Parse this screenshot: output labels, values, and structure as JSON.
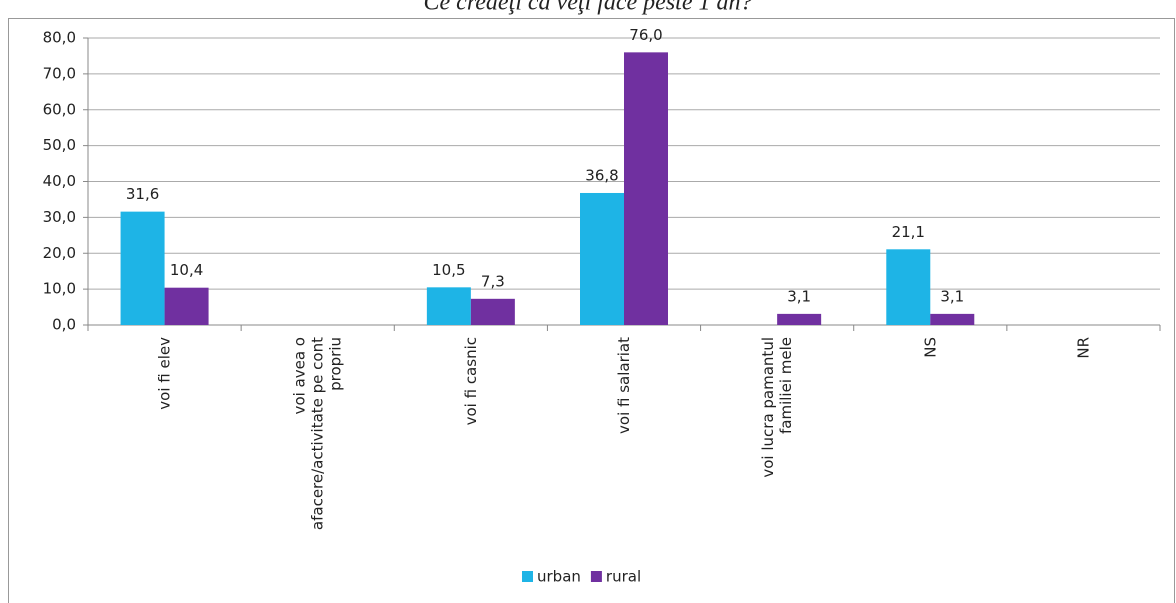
{
  "chart_data": {
    "type": "bar",
    "title": "Ce credeţi ca veţi face peste 1 an?",
    "categories": [
      "voi fi elev",
      "voi avea o afacere/activitate pe cont propriu",
      "voi fi casnic",
      "voi fi salariat",
      "voi lucra pamantul familiei mele",
      "NS",
      "NR"
    ],
    "series": [
      {
        "name": "urban",
        "color": "#1eb4e6",
        "values": [
          31.6,
          null,
          10.5,
          36.8,
          null,
          21.1,
          null
        ],
        "value_labels": [
          "31,6",
          null,
          "10,5",
          "36,8",
          null,
          "21,1",
          null
        ]
      },
      {
        "name": "rural",
        "color": "#7030a0",
        "values": [
          10.4,
          null,
          7.3,
          76.0,
          3.1,
          3.1,
          null
        ],
        "value_labels": [
          "10,4",
          null,
          "7,3",
          "76,0",
          "3,1",
          "3,1",
          null
        ]
      }
    ],
    "ylim": [
      0,
      80
    ],
    "yticks": [
      {
        "value": 0,
        "label": "0,0"
      },
      {
        "value": 10,
        "label": "10,0"
      },
      {
        "value": 20,
        "label": "20,0"
      },
      {
        "value": 30,
        "label": "30,0"
      },
      {
        "value": 40,
        "label": "40,0"
      },
      {
        "value": 50,
        "label": "50,0"
      },
      {
        "value": 60,
        "label": "60,0"
      },
      {
        "value": 70,
        "label": "70,0"
      },
      {
        "value": 80,
        "label": "80,0"
      }
    ],
    "grid": true,
    "legend": "bottom"
  }
}
